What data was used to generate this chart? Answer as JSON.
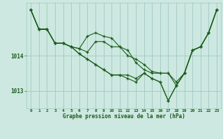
{
  "bg_color": "#cce8e0",
  "grid_color": "#a0c8c0",
  "line_color": "#1a5c1a",
  "marker_color": "#1a5c1a",
  "title": "Graphe pression niveau de la mer (hPa)",
  "xlim": [
    -0.5,
    23.5
  ],
  "ylim": [
    1012.5,
    1015.5
  ],
  "yticks": [
    1013,
    1014
  ],
  "xticks": [
    0,
    1,
    2,
    3,
    4,
    5,
    6,
    7,
    8,
    9,
    10,
    11,
    12,
    13,
    14,
    15,
    16,
    17,
    18,
    19,
    20,
    21,
    22,
    23
  ],
  "series": [
    [
      1015.3,
      1014.75,
      1014.75,
      1014.35,
      1014.35,
      1014.25,
      1014.2,
      1014.55,
      1014.65,
      1014.55,
      1014.5,
      1014.25,
      1014.0,
      1013.9,
      1013.75,
      1013.55,
      1013.5,
      1013.5,
      1013.15,
      1013.5,
      1014.15,
      1014.25,
      1014.65,
      1015.3
    ],
    [
      1015.3,
      1014.75,
      1014.75,
      1014.35,
      1014.35,
      1014.25,
      1014.2,
      1014.1,
      1014.4,
      1014.4,
      1014.25,
      1014.25,
      1014.15,
      1013.8,
      1013.6,
      1013.5,
      1013.5,
      1013.5,
      1013.25,
      1013.5,
      1014.15,
      1014.25,
      1014.65,
      1015.3
    ],
    [
      1015.3,
      1014.75,
      1014.75,
      1014.35,
      1014.35,
      1014.25,
      1014.05,
      1013.9,
      1013.75,
      1013.6,
      1013.45,
      1013.45,
      1013.45,
      1013.35,
      1013.5,
      1013.35,
      1013.25,
      1012.72,
      1013.15,
      1013.5,
      1014.15,
      1014.25,
      1014.65,
      1015.3
    ],
    [
      1015.3,
      1014.75,
      1014.75,
      1014.35,
      1014.35,
      1014.25,
      1014.05,
      1013.9,
      1013.75,
      1013.6,
      1013.45,
      1013.45,
      1013.35,
      1013.25,
      1013.5,
      1013.35,
      1013.25,
      1012.72,
      1013.15,
      1013.5,
      1014.15,
      1014.25,
      1014.65,
      1015.3
    ]
  ]
}
